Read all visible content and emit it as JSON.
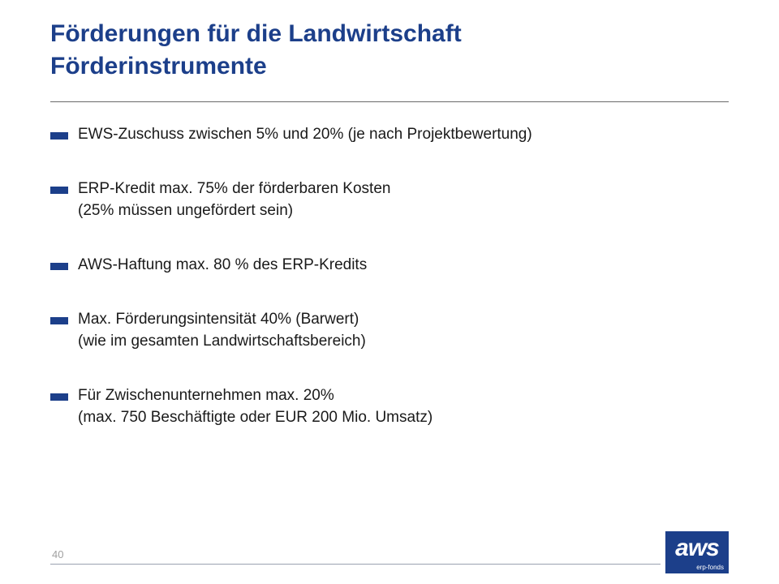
{
  "slide": {
    "title_lines": [
      "Förderungen für die Landwirtschaft",
      "Förderinstrumente"
    ],
    "bullets": [
      {
        "lines": [
          "EWS-Zuschuss zwischen 5% und 20% (je nach Projektbewertung)"
        ]
      },
      {
        "lines": [
          "ERP-Kredit max. 75% der förderbaren Kosten",
          "(25% müssen ungefördert sein)"
        ]
      },
      {
        "lines": [
          "AWS-Haftung max. 80 % des ERP-Kredits"
        ]
      },
      {
        "lines": [
          "Max. Förderungsintensität 40% (Barwert)",
          "(wie im gesamten Landwirtschaftsbereich)"
        ]
      },
      {
        "lines": [
          "Für Zwischenunternehmen max. 20%",
          "(max. 750 Beschäftigte oder EUR 200 Mio. Umsatz)"
        ]
      }
    ],
    "page_number": "40"
  },
  "logo": {
    "word": "aws",
    "sub": "erp-fonds"
  },
  "colors": {
    "accent": "#1c3f8a",
    "text": "#1a1a1a",
    "rule": "#6a6a6a"
  }
}
